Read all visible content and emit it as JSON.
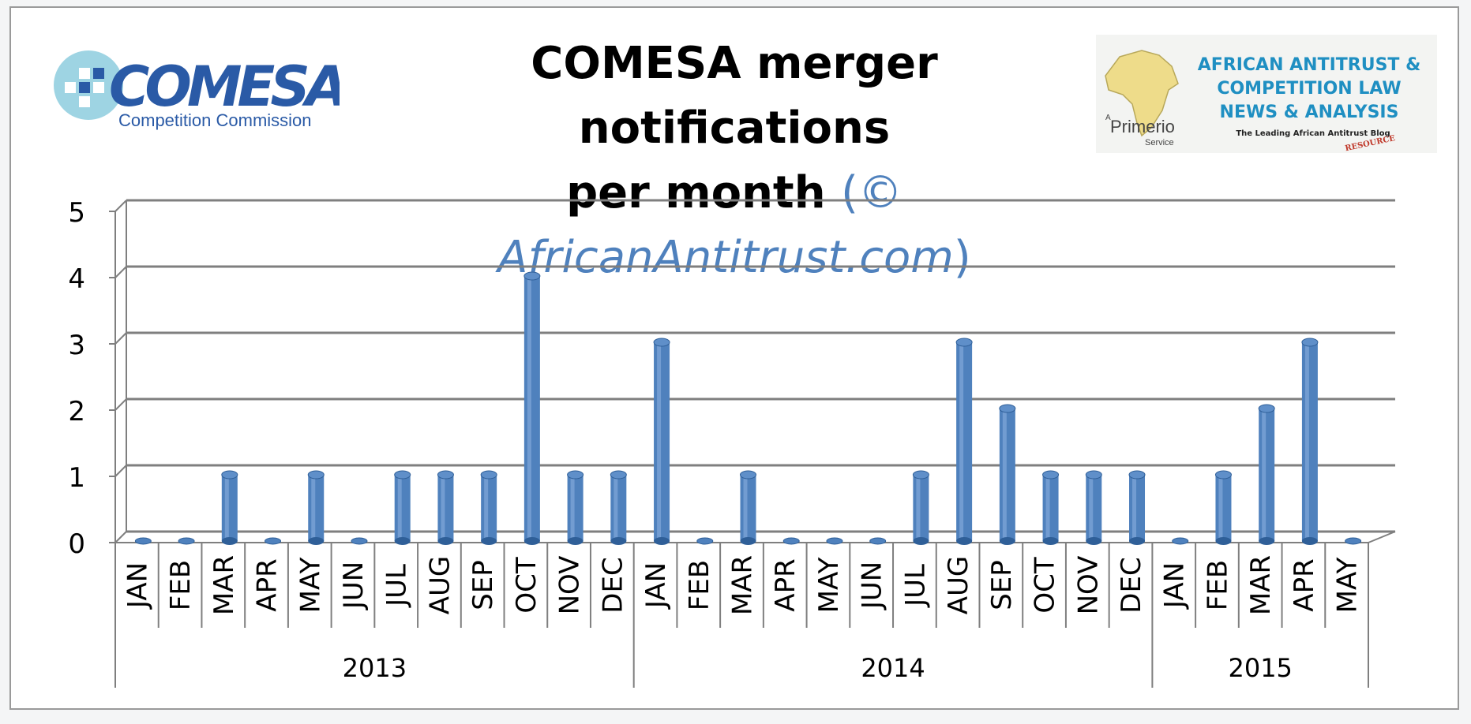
{
  "chart_data": {
    "type": "bar",
    "title": "COMESA merger notifications per month",
    "title_line1": "COMESA merger notifications",
    "title_line2": "per month",
    "credit": "(© AfricanAntitrust.com)",
    "credit_open": "(© ",
    "credit_site": "AfricanAntitrust.com",
    "credit_close": ")",
    "xlabel": "",
    "ylabel": "",
    "ylim": [
      0,
      5
    ],
    "yticks": [
      "0",
      "1",
      "2",
      "3",
      "4",
      "5"
    ],
    "grid": true,
    "legend": "none",
    "bar_color": "#4f81bd",
    "categories": [
      "JAN",
      "FEB",
      "MAR",
      "APR",
      "MAY",
      "JUN",
      "JUL",
      "AUG",
      "SEP",
      "OCT",
      "NOV",
      "DEC",
      "JAN",
      "FEB",
      "MAR",
      "APR",
      "MAY",
      "JUN",
      "JUL",
      "AUG",
      "SEP",
      "OCT",
      "NOV",
      "DEC",
      "JAN",
      "FEB",
      "MAR",
      "APR",
      "MAY"
    ],
    "values": [
      0,
      0,
      1,
      0,
      1,
      0,
      1,
      1,
      1,
      4,
      1,
      1,
      3,
      0,
      1,
      0,
      0,
      0,
      1,
      3,
      2,
      1,
      1,
      1,
      0,
      1,
      2,
      3,
      0
    ],
    "year_groups": [
      {
        "label": "2013",
        "count": 12
      },
      {
        "label": "2014",
        "count": 12
      },
      {
        "label": "2015",
        "count": 5
      }
    ]
  },
  "logos": {
    "left": {
      "name": "COMESA",
      "subtitle": "Competition Commission",
      "brand_color": "#2a5aa6",
      "accent_color": "#7ec6d9"
    },
    "right": {
      "line1": "AFRICAN ANTITRUST &",
      "line2": "COMPETITION LAW",
      "line3": "NEWS & ANALYSIS",
      "tagline": "The Leading African Antitrust Blog",
      "stamp": "RESOURCE",
      "badge_a": "A",
      "badge_name": "Primerio",
      "badge_service": "Service",
      "brand_color": "#1f8fc2"
    }
  }
}
